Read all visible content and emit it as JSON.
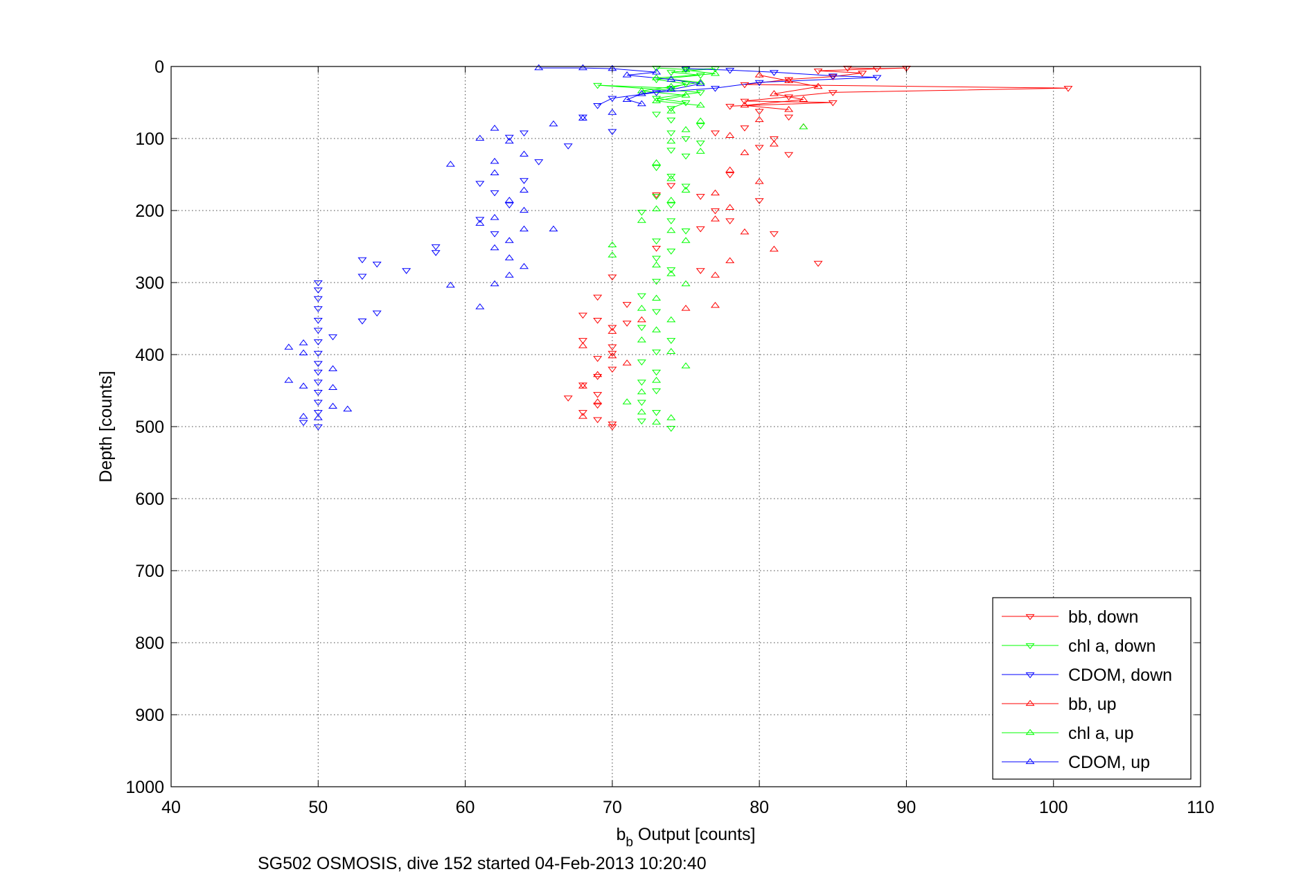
{
  "chart_data": {
    "type": "scatter",
    "title": "",
    "xlabel_main": "b",
    "xlabel_sub": "b",
    "xlabel_rest": " Output [counts]",
    "ylabel": "Depth [counts]",
    "caption": "SG502 OSMOSIS, dive 152 started 04-Feb-2013 10:20:40",
    "xlim": [
      40,
      110
    ],
    "ylim": [
      0,
      1000
    ],
    "y_reversed": true,
    "x_ticks": [
      40,
      50,
      60,
      70,
      80,
      90,
      100,
      110
    ],
    "y_ticks": [
      0,
      100,
      200,
      300,
      400,
      500,
      600,
      700,
      800,
      900,
      1000
    ],
    "grid": true,
    "legend_position": "bottom-right",
    "series": [
      {
        "name": "bb, down",
        "color": "#ff0000",
        "marker": "triangle-down",
        "points": [
          [
            86,
            2
          ],
          [
            88,
            3
          ],
          [
            90,
            2
          ],
          [
            84,
            6
          ],
          [
            87,
            9
          ],
          [
            85,
            14
          ],
          [
            82,
            18
          ],
          [
            79,
            25
          ],
          [
            101,
            30
          ],
          [
            85,
            36
          ],
          [
            82,
            42
          ],
          [
            79,
            48
          ],
          [
            85,
            50
          ],
          [
            78,
            55
          ],
          [
            80,
            62
          ],
          [
            82,
            70
          ],
          [
            79,
            85
          ],
          [
            77,
            92
          ],
          [
            81,
            100
          ],
          [
            80,
            112
          ],
          [
            82,
            122
          ],
          [
            78,
            150
          ],
          [
            74,
            165
          ],
          [
            76,
            180
          ],
          [
            73,
            178
          ],
          [
            80,
            186
          ],
          [
            77,
            200
          ],
          [
            78,
            214
          ],
          [
            76,
            225
          ],
          [
            81,
            232
          ],
          [
            73,
            252
          ],
          [
            84,
            273
          ],
          [
            76,
            283
          ],
          [
            70,
            292
          ],
          [
            69,
            320
          ],
          [
            71,
            330
          ],
          [
            68,
            345
          ],
          [
            69,
            352
          ],
          [
            71,
            356
          ],
          [
            70,
            362
          ],
          [
            68,
            380
          ],
          [
            70,
            389
          ],
          [
            70,
            398
          ],
          [
            69,
            405
          ],
          [
            70,
            420
          ],
          [
            69,
            430
          ],
          [
            68,
            442
          ],
          [
            69,
            455
          ],
          [
            67,
            460
          ],
          [
            69,
            470
          ],
          [
            68,
            480
          ],
          [
            69,
            490
          ],
          [
            70,
            496
          ],
          [
            70,
            500
          ]
        ]
      },
      {
        "name": "chl a, down",
        "color": "#00ff00",
        "marker": "triangle-down",
        "points": [
          [
            73,
            2
          ],
          [
            75,
            4
          ],
          [
            77,
            3
          ],
          [
            74,
            8
          ],
          [
            76,
            12
          ],
          [
            73,
            18
          ],
          [
            75,
            24
          ],
          [
            74,
            30
          ],
          [
            69,
            26
          ],
          [
            76,
            36
          ],
          [
            73,
            44
          ],
          [
            75,
            50
          ],
          [
            74,
            58
          ],
          [
            73,
            66
          ],
          [
            74,
            74
          ],
          [
            76,
            82
          ],
          [
            74,
            92
          ],
          [
            75,
            100
          ],
          [
            76,
            106
          ],
          [
            74,
            116
          ],
          [
            75,
            124
          ],
          [
            73,
            140
          ],
          [
            74,
            152
          ],
          [
            75,
            166
          ],
          [
            73,
            180
          ],
          [
            74,
            192
          ],
          [
            72,
            202
          ],
          [
            74,
            214
          ],
          [
            75,
            228
          ],
          [
            73,
            242
          ],
          [
            74,
            256
          ],
          [
            73,
            266
          ],
          [
            74,
            282
          ],
          [
            73,
            298
          ],
          [
            72,
            318
          ],
          [
            73,
            340
          ],
          [
            72,
            362
          ],
          [
            74,
            380
          ],
          [
            73,
            396
          ],
          [
            72,
            410
          ],
          [
            73,
            424
          ],
          [
            72,
            438
          ],
          [
            73,
            450
          ],
          [
            72,
            466
          ],
          [
            73,
            480
          ],
          [
            72,
            492
          ],
          [
            74,
            502
          ]
        ]
      },
      {
        "name": "CDOM, down",
        "color": "#0000ff",
        "marker": "triangle-down",
        "points": [
          [
            75,
            3
          ],
          [
            78,
            5
          ],
          [
            81,
            8
          ],
          [
            85,
            13
          ],
          [
            88,
            15
          ],
          [
            80,
            22
          ],
          [
            77,
            30
          ],
          [
            73,
            36
          ],
          [
            70,
            44
          ],
          [
            69,
            54
          ],
          [
            68,
            70
          ],
          [
            70,
            90
          ],
          [
            67,
            110
          ],
          [
            64,
            92
          ],
          [
            63,
            98
          ],
          [
            65,
            132
          ],
          [
            64,
            158
          ],
          [
            62,
            175
          ],
          [
            61,
            162
          ],
          [
            63,
            192
          ],
          [
            61,
            212
          ],
          [
            62,
            232
          ],
          [
            58,
            250
          ],
          [
            58,
            258
          ],
          [
            56,
            283
          ],
          [
            54,
            274
          ],
          [
            53,
            268
          ],
          [
            53,
            291
          ],
          [
            54,
            342
          ],
          [
            53,
            353
          ],
          [
            51,
            375
          ],
          [
            50,
            300
          ],
          [
            50,
            310
          ],
          [
            50,
            322
          ],
          [
            50,
            336
          ],
          [
            50,
            352
          ],
          [
            50,
            366
          ],
          [
            50,
            382
          ],
          [
            50,
            398
          ],
          [
            50,
            412
          ],
          [
            50,
            424
          ],
          [
            50,
            438
          ],
          [
            50,
            452
          ],
          [
            50,
            466
          ],
          [
            50,
            480
          ],
          [
            49,
            494
          ],
          [
            50,
            500
          ]
        ]
      },
      {
        "name": "bb, up",
        "color": "#ff0000",
        "marker": "triangle-up",
        "points": [
          [
            80,
            12
          ],
          [
            82,
            20
          ],
          [
            84,
            28
          ],
          [
            81,
            38
          ],
          [
            83,
            46
          ],
          [
            79,
            54
          ],
          [
            82,
            60
          ],
          [
            80,
            74
          ],
          [
            83,
            84
          ],
          [
            78,
            96
          ],
          [
            81,
            108
          ],
          [
            79,
            120
          ],
          [
            78,
            144
          ],
          [
            80,
            160
          ],
          [
            77,
            176
          ],
          [
            78,
            196
          ],
          [
            77,
            212
          ],
          [
            79,
            230
          ],
          [
            81,
            254
          ],
          [
            78,
            270
          ],
          [
            77,
            290
          ],
          [
            77,
            332
          ],
          [
            75,
            336
          ],
          [
            72,
            352
          ],
          [
            70,
            368
          ],
          [
            68,
            388
          ],
          [
            70,
            402
          ],
          [
            71,
            412
          ],
          [
            69,
            428
          ],
          [
            68,
            444
          ],
          [
            69,
            466
          ],
          [
            68,
            486
          ]
        ]
      },
      {
        "name": "chl a, up",
        "color": "#00ff00",
        "marker": "triangle-up",
        "points": [
          [
            75,
            5
          ],
          [
            77,
            10
          ],
          [
            73,
            16
          ],
          [
            76,
            22
          ],
          [
            74,
            28
          ],
          [
            72,
            34
          ],
          [
            75,
            40
          ],
          [
            73,
            48
          ],
          [
            76,
            54
          ],
          [
            74,
            62
          ],
          [
            76,
            76
          ],
          [
            75,
            88
          ],
          [
            83,
            84
          ],
          [
            74,
            104
          ],
          [
            76,
            118
          ],
          [
            73,
            134
          ],
          [
            74,
            156
          ],
          [
            75,
            172
          ],
          [
            74,
            186
          ],
          [
            73,
            198
          ],
          [
            72,
            214
          ],
          [
            74,
            228
          ],
          [
            75,
            242
          ],
          [
            70,
            248
          ],
          [
            70,
            262
          ],
          [
            73,
            276
          ],
          [
            74,
            288
          ],
          [
            75,
            302
          ],
          [
            73,
            322
          ],
          [
            72,
            336
          ],
          [
            74,
            352
          ],
          [
            73,
            366
          ],
          [
            72,
            380
          ],
          [
            74,
            396
          ],
          [
            75,
            416
          ],
          [
            73,
            436
          ],
          [
            72,
            452
          ],
          [
            71,
            466
          ],
          [
            72,
            480
          ],
          [
            73,
            494
          ],
          [
            74,
            488
          ]
        ]
      },
      {
        "name": "CDOM, up",
        "color": "#0000ff",
        "marker": "triangle-up",
        "points": [
          [
            65,
            2
          ],
          [
            68,
            2
          ],
          [
            70,
            3
          ],
          [
            73,
            8
          ],
          [
            71,
            12
          ],
          [
            74,
            18
          ],
          [
            76,
            24
          ],
          [
            74,
            32
          ],
          [
            72,
            38
          ],
          [
            71,
            46
          ],
          [
            72,
            52
          ],
          [
            70,
            64
          ],
          [
            68,
            72
          ],
          [
            66,
            80
          ],
          [
            62,
            86
          ],
          [
            61,
            100
          ],
          [
            63,
            104
          ],
          [
            64,
            122
          ],
          [
            62,
            132
          ],
          [
            59,
            136
          ],
          [
            62,
            148
          ],
          [
            64,
            172
          ],
          [
            63,
            186
          ],
          [
            64,
            200
          ],
          [
            62,
            210
          ],
          [
            61,
            218
          ],
          [
            64,
            226
          ],
          [
            66,
            226
          ],
          [
            63,
            242
          ],
          [
            62,
            252
          ],
          [
            63,
            266
          ],
          [
            64,
            278
          ],
          [
            63,
            290
          ],
          [
            62,
            302
          ],
          [
            61,
            334
          ],
          [
            59,
            304
          ],
          [
            49,
            384
          ],
          [
            48,
            390
          ],
          [
            49,
            398
          ],
          [
            48,
            436
          ],
          [
            49,
            444
          ],
          [
            51,
            420
          ],
          [
            51,
            446
          ],
          [
            51,
            472
          ],
          [
            52,
            476
          ],
          [
            49,
            486
          ],
          [
            50,
            488
          ]
        ]
      }
    ]
  }
}
